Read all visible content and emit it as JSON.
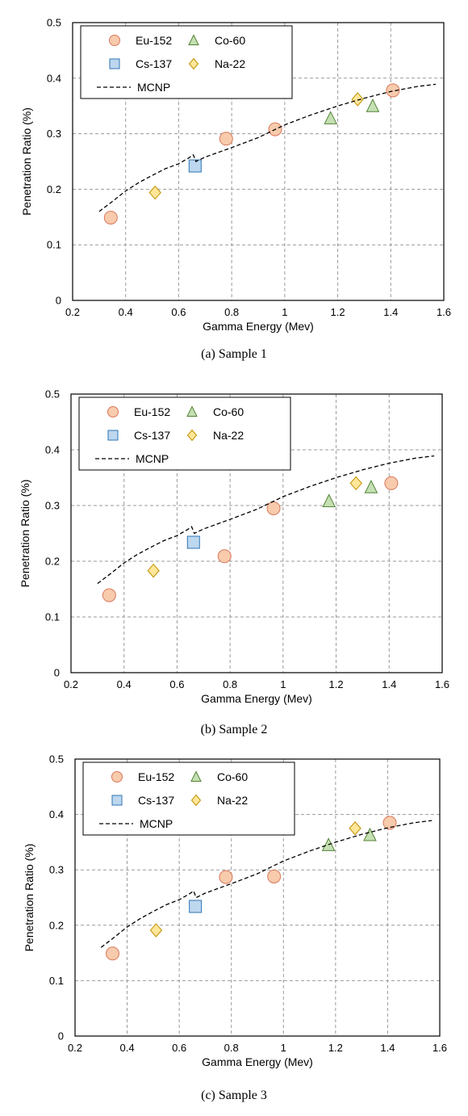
{
  "colors": {
    "eu152_fill": "#f8cbad",
    "eu152_stroke": "#d9765a",
    "cs137_fill": "#bdd7ee",
    "cs137_stroke": "#2e75b6",
    "co60_fill": "#c5e0b4",
    "co60_stroke": "#548235",
    "na22_fill": "#ffe699",
    "na22_stroke": "#bf9000",
    "mcnp_line": "#000000"
  },
  "chart_data": [
    {
      "type": "scatter",
      "caption": "(a) Sample 1",
      "xlabel": "Gamma Energy (Mev)",
      "ylabel": "Penetration Ratio (%)",
      "xlim": [
        0.2,
        1.6
      ],
      "ylim": [
        0,
        0.5
      ],
      "xticks": [
        "0.2",
        "0.4",
        "0.6",
        "0.8",
        "1",
        "1.2",
        "1.4",
        "1.6"
      ],
      "yticks": [
        "0",
        "0.1",
        "0.2",
        "0.3",
        "0.4",
        "0.5"
      ],
      "grid": true,
      "legend_position": "top-left",
      "series": [
        {
          "name": "Eu-152",
          "marker": "circle",
          "points": [
            [
              0.344,
              0.149
            ],
            [
              0.779,
              0.291
            ],
            [
              0.964,
              0.308
            ],
            [
              1.408,
              0.378
            ]
          ]
        },
        {
          "name": "Co-60",
          "marker": "triangle",
          "points": [
            [
              1.173,
              0.328
            ],
            [
              1.332,
              0.35
            ]
          ]
        },
        {
          "name": "Cs-137",
          "marker": "square",
          "points": [
            [
              0.662,
              0.242
            ]
          ]
        },
        {
          "name": "Na-22",
          "marker": "diamond",
          "points": [
            [
              0.511,
              0.194
            ],
            [
              1.275,
              0.362
            ]
          ]
        },
        {
          "name": "MCNP",
          "marker": "dashed-line",
          "points": [
            [
              0.3,
              0.16
            ],
            [
              0.35,
              0.178
            ],
            [
              0.4,
              0.197
            ],
            [
              0.45,
              0.212
            ],
            [
              0.5,
              0.225
            ],
            [
              0.55,
              0.237
            ],
            [
              0.6,
              0.246
            ],
            [
              0.64,
              0.257
            ],
            [
              0.655,
              0.262
            ],
            [
              0.665,
              0.25
            ],
            [
              0.7,
              0.258
            ],
            [
              0.8,
              0.275
            ],
            [
              0.9,
              0.293
            ],
            [
              1.0,
              0.316
            ],
            [
              1.1,
              0.334
            ],
            [
              1.2,
              0.35
            ],
            [
              1.3,
              0.364
            ],
            [
              1.4,
              0.376
            ],
            [
              1.5,
              0.385
            ],
            [
              1.57,
              0.389
            ]
          ]
        }
      ]
    },
    {
      "type": "scatter",
      "caption": "(b) Sample 2",
      "xlabel": "Gamma Energy (Mev)",
      "ylabel": "Penetration Ratio (%)",
      "xlim": [
        0.2,
        1.6
      ],
      "ylim": [
        0,
        0.5
      ],
      "xticks": [
        "0.2",
        "0.4",
        "0.6",
        "0.8",
        "1",
        "1.2",
        "1.4",
        "1.6"
      ],
      "yticks": [
        "0",
        "0.1",
        "0.2",
        "0.3",
        "0.4",
        "0.5"
      ],
      "grid": true,
      "legend_position": "top-left",
      "series": [
        {
          "name": "Eu-152",
          "marker": "circle",
          "points": [
            [
              0.344,
              0.139
            ],
            [
              0.779,
              0.209
            ],
            [
              0.964,
              0.295
            ],
            [
              1.408,
              0.34
            ]
          ]
        },
        {
          "name": "Co-60",
          "marker": "triangle",
          "points": [
            [
              1.173,
              0.308
            ],
            [
              1.332,
              0.333
            ]
          ]
        },
        {
          "name": "Cs-137",
          "marker": "square",
          "points": [
            [
              0.662,
              0.234
            ]
          ]
        },
        {
          "name": "Na-22",
          "marker": "diamond",
          "points": [
            [
              0.511,
              0.183
            ],
            [
              1.275,
              0.34
            ]
          ]
        },
        {
          "name": "MCNP",
          "marker": "dashed-line",
          "points": [
            [
              0.3,
              0.16
            ],
            [
              0.35,
              0.178
            ],
            [
              0.4,
              0.197
            ],
            [
              0.45,
              0.212
            ],
            [
              0.5,
              0.225
            ],
            [
              0.55,
              0.237
            ],
            [
              0.6,
              0.246
            ],
            [
              0.64,
              0.257
            ],
            [
              0.655,
              0.262
            ],
            [
              0.665,
              0.25
            ],
            [
              0.7,
              0.258
            ],
            [
              0.8,
              0.275
            ],
            [
              0.9,
              0.293
            ],
            [
              1.0,
              0.316
            ],
            [
              1.1,
              0.334
            ],
            [
              1.2,
              0.35
            ],
            [
              1.3,
              0.364
            ],
            [
              1.4,
              0.376
            ],
            [
              1.5,
              0.385
            ],
            [
              1.57,
              0.389
            ]
          ]
        }
      ]
    },
    {
      "type": "scatter",
      "caption": "(c) Sample 3",
      "xlabel": "Gamma Energy (Mev)",
      "ylabel": "Penetration Ratio (%)",
      "xlim": [
        0.2,
        1.6
      ],
      "ylim": [
        0,
        0.5
      ],
      "xticks": [
        "0.2",
        "0.4",
        "0.6",
        "0.8",
        "1",
        "1.2",
        "1.4",
        "1.6"
      ],
      "yticks": [
        "0",
        "0.1",
        "0.2",
        "0.3",
        "0.4",
        "0.5"
      ],
      "grid": true,
      "legend_position": "top-left",
      "series": [
        {
          "name": "Eu-152",
          "marker": "circle",
          "points": [
            [
              0.344,
              0.149
            ],
            [
              0.779,
              0.287
            ],
            [
              0.964,
              0.288
            ],
            [
              1.408,
              0.385
            ]
          ]
        },
        {
          "name": "Co-60",
          "marker": "triangle",
          "points": [
            [
              1.173,
              0.345
            ],
            [
              1.332,
              0.363
            ]
          ]
        },
        {
          "name": "Cs-137",
          "marker": "square",
          "points": [
            [
              0.662,
              0.234
            ]
          ]
        },
        {
          "name": "Na-22",
          "marker": "diamond",
          "points": [
            [
              0.511,
              0.191
            ],
            [
              1.275,
              0.375
            ]
          ]
        },
        {
          "name": "MCNP",
          "marker": "dashed-line",
          "points": [
            [
              0.3,
              0.16
            ],
            [
              0.35,
              0.178
            ],
            [
              0.4,
              0.197
            ],
            [
              0.45,
              0.212
            ],
            [
              0.5,
              0.225
            ],
            [
              0.55,
              0.237
            ],
            [
              0.6,
              0.246
            ],
            [
              0.64,
              0.257
            ],
            [
              0.655,
              0.262
            ],
            [
              0.665,
              0.25
            ],
            [
              0.7,
              0.258
            ],
            [
              0.8,
              0.275
            ],
            [
              0.9,
              0.293
            ],
            [
              1.0,
              0.316
            ],
            [
              1.1,
              0.334
            ],
            [
              1.2,
              0.35
            ],
            [
              1.3,
              0.364
            ],
            [
              1.4,
              0.376
            ],
            [
              1.5,
              0.385
            ],
            [
              1.57,
              0.389
            ]
          ]
        }
      ]
    }
  ]
}
